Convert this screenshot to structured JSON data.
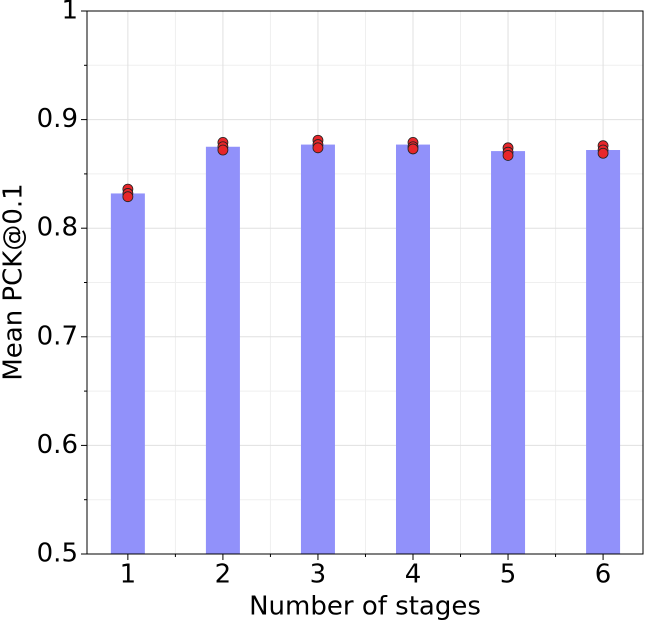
{
  "chart_data": {
    "type": "bar",
    "x_label": "Number of stages",
    "y_label": "Mean PCK@0.1",
    "x": [
      1,
      2,
      3,
      4,
      5,
      6
    ],
    "values": [
      0.832,
      0.875,
      0.877,
      0.877,
      0.871,
      0.872
    ],
    "color": "#9191fa",
    "points": {
      "color": "#e8262a",
      "edgecolor": "#222222",
      "x": [
        1,
        1,
        1,
        2,
        2,
        2,
        3,
        3,
        3,
        4,
        4,
        4,
        5,
        5,
        5,
        6,
        6,
        6
      ],
      "y": [
        0.836,
        0.832,
        0.829,
        0.879,
        0.875,
        0.872,
        0.881,
        0.877,
        0.874,
        0.879,
        0.875,
        0.873,
        0.874,
        0.87,
        0.867,
        0.876,
        0.872,
        0.869
      ]
    },
    "xlim": [
      0.57,
      6.42
    ],
    "ylim": [
      0.5,
      1.0
    ],
    "xticks": [
      1,
      2,
      3,
      4,
      5,
      6
    ],
    "yticks": [
      0.5,
      0.6,
      0.7,
      0.8,
      0.9,
      1.0
    ],
    "xminorticks": [
      1.5,
      2.5,
      3.5,
      4.5,
      5.5
    ],
    "yminorticks": [
      0.55,
      0.65,
      0.75,
      0.85,
      0.95
    ],
    "grid": true
  }
}
